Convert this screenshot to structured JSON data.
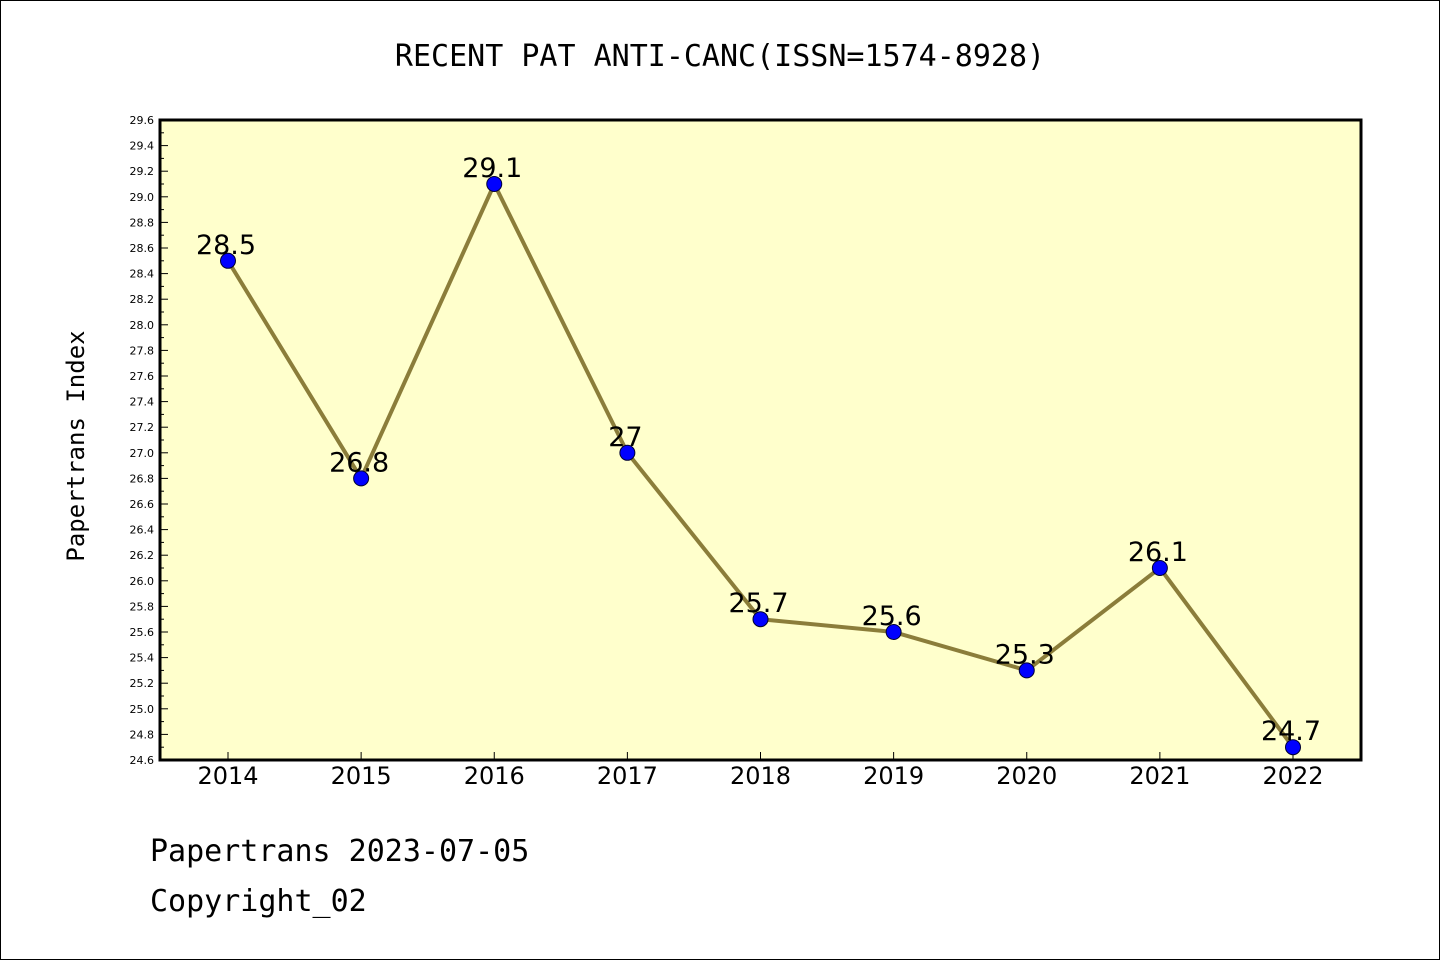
{
  "chart_data": {
    "type": "line",
    "title": "RECENT PAT ANTI-CANC(ISSN=1574-8928)",
    "xlabel": "",
    "ylabel": "Papertrans Index",
    "categories": [
      "2014",
      "2015",
      "2016",
      "2017",
      "2018",
      "2019",
      "2020",
      "2021",
      "2022"
    ],
    "values": [
      28.5,
      26.8,
      29.1,
      27.0,
      25.7,
      25.6,
      25.3,
      26.1,
      24.7
    ],
    "data_labels": [
      "28.5",
      "26.8",
      "29.1",
      "27",
      "25.7",
      "25.6",
      "25.3",
      "26.1",
      "24.7"
    ],
    "ylim": [
      24.6,
      29.6
    ],
    "y_tick_step": 0.2,
    "grid": false,
    "legend": "none",
    "colors": {
      "plot_background": "#ffffcc",
      "line": "#8b7d3a",
      "marker": "#0000ff"
    }
  },
  "footer": {
    "date_line": "Papertrans 2023-07-05",
    "copyright_line": "Copyright_02"
  }
}
